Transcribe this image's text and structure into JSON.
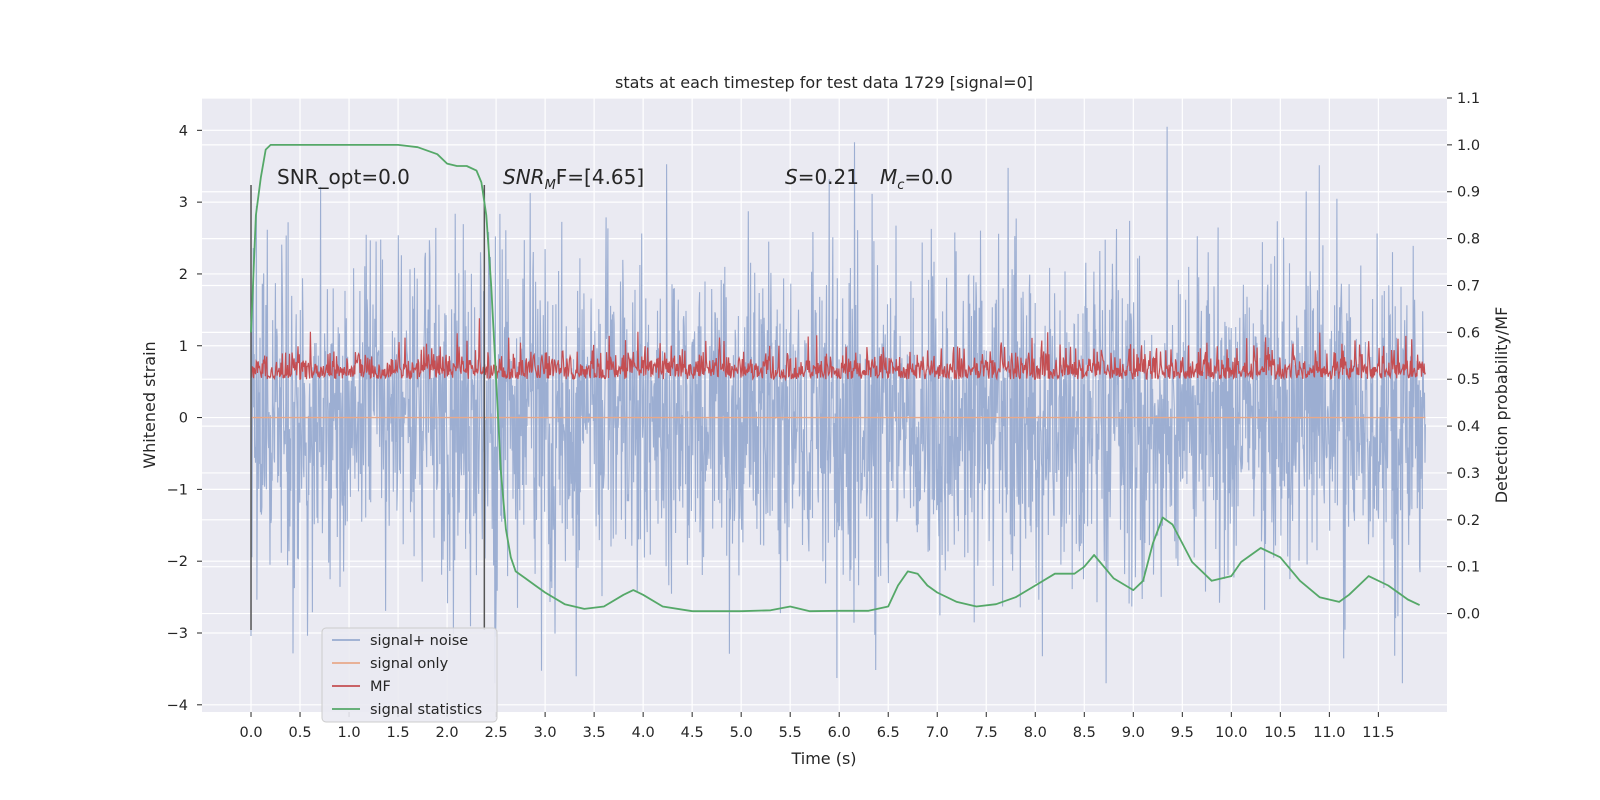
{
  "chart_data": {
    "type": "line",
    "title": "stats at each timestep for test data 1729 [signal=0]",
    "xlabel": "Time (s)",
    "ylabel": "Whitened strain",
    "ylabel_right": "Detection probability/MF",
    "xlim": [
      -0.5,
      12.2
    ],
    "ylim": [
      -4.1,
      4.45
    ],
    "ylim_right": [
      -0.21,
      1.1
    ],
    "xticks": [
      "0.0",
      "0.5",
      "1.0",
      "1.5",
      "2.0",
      "2.5",
      "3.0",
      "3.5",
      "4.0",
      "4.5",
      "5.0",
      "5.5",
      "6.0",
      "6.5",
      "7.0",
      "7.5",
      "8.0",
      "8.5",
      "9.0",
      "9.5",
      "10.0",
      "10.5",
      "11.0",
      "11.5"
    ],
    "yticks_left": [
      "4",
      "3",
      "2",
      "1",
      "0",
      "−1",
      "−2",
      "−3",
      "−4"
    ],
    "yticks_right": [
      "1.1",
      "1.0",
      "0.9",
      "0.8",
      "0.7",
      "0.6",
      "0.5",
      "0.4",
      "0.3",
      "0.2",
      "0.1",
      "0.0"
    ],
    "grid": true,
    "legend_location": "lower-left",
    "annotations": {
      "snr_opt": "SNR_opt=0.0",
      "snr_mf_var": "SNR",
      "snr_mf_sub": "M",
      "snr_mf_rest": "F=[4.65]",
      "s_var": "S",
      "s_rest": "=0.21",
      "mc_var": "M",
      "mc_sub": "c",
      "mc_rest": "=0.0"
    },
    "vertical_markers": [
      0.0,
      2.38
    ],
    "series": [
      {
        "name": "signal+ noise",
        "color": "#98abd0",
        "axis": "left",
        "x_range": [
          0.0,
          11.98
        ],
        "description_values": {
          "typical_min": -2.0,
          "typical_max": 2.0,
          "peak_max": 4.1,
          "peak_min": -3.7
        }
      },
      {
        "name": "signal only",
        "color": "#e8a98a",
        "axis": "left",
        "x": [
          0.0,
          11.98
        ],
        "y": [
          0.0,
          0.0
        ]
      },
      {
        "name": "MF",
        "color": "#c44e52",
        "axis": "right",
        "x_range": [
          0.0,
          11.98
        ],
        "description_values": {
          "baseline": 0.5,
          "typical_max": 0.57,
          "peak_max": 0.63
        }
      },
      {
        "name": "signal statistics",
        "color": "#55a868",
        "axis": "right",
        "x": [
          0.0,
          0.05,
          0.1,
          0.15,
          0.2,
          0.3,
          0.5,
          1.0,
          1.5,
          1.7,
          1.9,
          2.0,
          2.1,
          2.2,
          2.3,
          2.35,
          2.4,
          2.45,
          2.5,
          2.55,
          2.6,
          2.65,
          2.7,
          2.8,
          2.9,
          3.0,
          3.2,
          3.4,
          3.6,
          3.8,
          3.9,
          4.0,
          4.2,
          4.5,
          5.0,
          5.3,
          5.5,
          5.7,
          6.0,
          6.3,
          6.5,
          6.6,
          6.7,
          6.8,
          6.9,
          7.0,
          7.2,
          7.4,
          7.6,
          7.8,
          8.0,
          8.2,
          8.4,
          8.5,
          8.6,
          8.7,
          8.8,
          9.0,
          9.1,
          9.2,
          9.3,
          9.4,
          9.6,
          9.8,
          10.0,
          10.1,
          10.3,
          10.5,
          10.7,
          10.9,
          11.1,
          11.2,
          11.4,
          11.6,
          11.8,
          11.92
        ],
        "y": [
          0.6,
          0.85,
          0.93,
          0.99,
          1.0,
          1.0,
          1.0,
          1.0,
          1.0,
          0.995,
          0.98,
          0.96,
          0.955,
          0.955,
          0.945,
          0.92,
          0.85,
          0.7,
          0.5,
          0.3,
          0.18,
          0.12,
          0.09,
          0.075,
          0.06,
          0.045,
          0.02,
          0.01,
          0.015,
          0.04,
          0.05,
          0.04,
          0.015,
          0.005,
          0.005,
          0.007,
          0.015,
          0.005,
          0.006,
          0.006,
          0.015,
          0.06,
          0.09,
          0.085,
          0.06,
          0.045,
          0.025,
          0.015,
          0.02,
          0.035,
          0.06,
          0.085,
          0.085,
          0.1,
          0.125,
          0.1,
          0.075,
          0.05,
          0.07,
          0.15,
          0.205,
          0.19,
          0.11,
          0.07,
          0.08,
          0.11,
          0.14,
          0.12,
          0.07,
          0.035,
          0.025,
          0.04,
          0.08,
          0.06,
          0.03,
          0.018
        ]
      }
    ]
  }
}
